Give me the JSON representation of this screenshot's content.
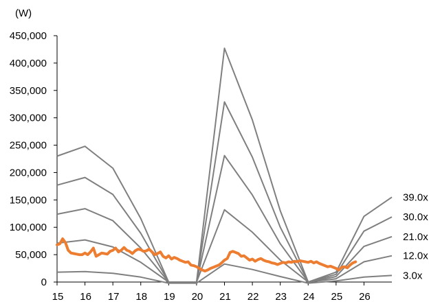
{
  "chart_data": {
    "type": "line",
    "title": "",
    "unit_label": "(W)",
    "xlabel": "",
    "ylabel": "",
    "x_ticks": [
      "15",
      "16",
      "17",
      "18",
      "19",
      "20",
      "21",
      "22",
      "23",
      "24",
      "25",
      "26"
    ],
    "y_ticks": [
      "0",
      "50,000",
      "100,000",
      "150,000",
      "200,000",
      "250,000",
      "300,000",
      "350,000",
      "400,000",
      "450,000"
    ],
    "xlim": [
      15,
      27
    ],
    "ylim": [
      0,
      450000
    ],
    "grid": false,
    "legend": "none",
    "colors": {
      "bands": "#7f7f7f",
      "price": "#ed7d31"
    },
    "bands": [
      {
        "label": "39.0x",
        "x": [
          15,
          16,
          17,
          18,
          19,
          20,
          21,
          22,
          23,
          24,
          25,
          26,
          27
        ],
        "y": [
          230000,
          248000,
          208000,
          116000,
          0,
          0,
          427000,
          296000,
          130000,
          0,
          18000,
          120000,
          155000
        ]
      },
      {
        "label": "30.0x",
        "x": [
          15,
          16,
          17,
          18,
          19,
          20,
          21,
          22,
          23,
          24,
          25,
          26,
          27
        ],
        "y": [
          177000,
          191000,
          160000,
          89000,
          0,
          0,
          329000,
          228000,
          100000,
          0,
          14000,
          93000,
          119000
        ]
      },
      {
        "label": "21.0x",
        "x": [
          15,
          16,
          17,
          18,
          19,
          20,
          21,
          22,
          23,
          24,
          25,
          26,
          27
        ],
        "y": [
          124000,
          134000,
          112000,
          62000,
          0,
          0,
          231000,
          159000,
          70000,
          0,
          10000,
          65000,
          83000
        ]
      },
      {
        "label": "12.0x",
        "x": [
          15,
          16,
          17,
          18,
          19,
          20,
          21,
          22,
          23,
          24,
          25,
          26,
          27
        ],
        "y": [
          71000,
          77000,
          64000,
          36000,
          0,
          0,
          132000,
          91000,
          40000,
          0,
          6000,
          37000,
          48000
        ]
      },
      {
        "label": "3.0x",
        "x": [
          15,
          16,
          17,
          18,
          19,
          20,
          21,
          22,
          23,
          24,
          25,
          26,
          27
        ],
        "y": [
          18000,
          19000,
          16000,
          9000,
          -2000,
          -2000,
          33000,
          23000,
          10000,
          -2000,
          2000,
          9000,
          12000
        ]
      }
    ],
    "price": {
      "x": [
        15.0,
        15.1,
        15.2,
        15.3,
        15.4,
        15.5,
        15.6,
        15.7,
        15.8,
        15.9,
        16.0,
        16.1,
        16.2,
        16.3,
        16.4,
        16.5,
        16.6,
        16.7,
        16.8,
        16.9,
        17.0,
        17.1,
        17.2,
        17.3,
        17.4,
        17.5,
        17.6,
        17.7,
        17.8,
        17.9,
        18.0,
        18.1,
        18.2,
        18.3,
        18.4,
        18.5,
        18.6,
        18.7,
        18.8,
        18.9,
        19.0,
        19.1,
        19.2,
        19.3,
        19.4,
        19.5,
        19.6,
        19.7,
        19.8,
        19.9,
        20.0,
        20.1,
        20.2,
        20.3,
        20.4,
        20.5,
        20.6,
        20.7,
        20.8,
        20.9,
        21.0,
        21.1,
        21.2,
        21.3,
        21.4,
        21.5,
        21.6,
        21.7,
        21.8,
        21.9,
        22.0,
        22.1,
        22.2,
        22.3,
        22.4,
        22.5,
        22.6,
        22.7,
        22.8,
        22.9,
        23.0,
        23.1,
        23.2,
        23.3,
        23.4,
        23.5,
        23.6,
        23.7,
        23.8,
        23.9,
        24.0,
        24.1,
        24.2,
        24.3,
        24.4,
        24.5,
        24.6,
        24.7,
        24.8,
        24.9,
        25.0,
        25.1,
        25.2,
        25.3,
        25.4,
        25.5,
        25.6,
        25.7
      ],
      "y": [
        68000,
        70000,
        79000,
        72000,
        58000,
        53000,
        52000,
        51000,
        50000,
        50000,
        53000,
        50000,
        55000,
        62000,
        47000,
        50000,
        53000,
        52000,
        51000,
        56000,
        58000,
        62000,
        55000,
        58000,
        63000,
        58000,
        56000,
        52000,
        57000,
        60000,
        59000,
        56000,
        57000,
        60000,
        55000,
        50000,
        52000,
        55000,
        47000,
        44000,
        48000,
        42000,
        45000,
        43000,
        40000,
        38000,
        36000,
        37000,
        31000,
        30000,
        28000,
        25000,
        22000,
        20000,
        22000,
        25000,
        27000,
        29000,
        31000,
        35000,
        40000,
        43000,
        54000,
        56000,
        54000,
        52000,
        47000,
        48000,
        44000,
        40000,
        42000,
        38000,
        41000,
        43000,
        40000,
        38000,
        37000,
        35000,
        34000,
        32000,
        34000,
        36000,
        35000,
        37000,
        36000,
        38000,
        37000,
        39000,
        38000,
        37000,
        36000,
        38000,
        35000,
        37000,
        34000,
        32000,
        30000,
        28000,
        29000,
        27000,
        25000,
        22000,
        27000,
        28000,
        26000,
        31000,
        35000,
        37000
      ]
    }
  }
}
